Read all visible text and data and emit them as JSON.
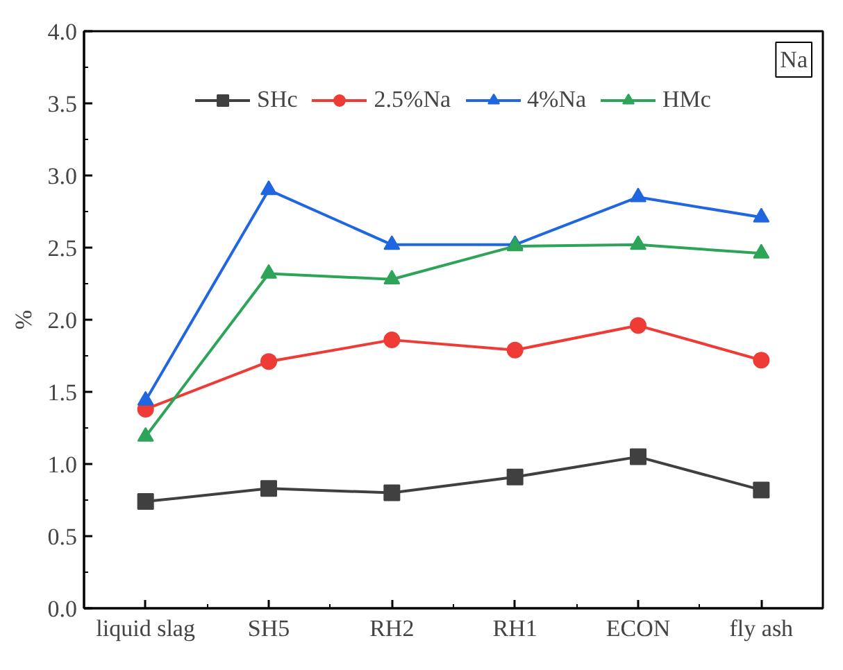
{
  "chart_data": {
    "type": "line",
    "ylabel": "%",
    "categories": [
      "liquid slag",
      "SH5",
      "RH2",
      "RH1",
      "ECON",
      "fly ash"
    ],
    "series": [
      {
        "name": "SHc",
        "color": "#404040",
        "marker": "square",
        "values": [
          0.74,
          0.83,
          0.8,
          0.91,
          1.05,
          0.82
        ]
      },
      {
        "name": "2.5%Na",
        "color": "#ef3b36",
        "marker": "circle",
        "values": [
          1.38,
          1.71,
          1.86,
          1.79,
          1.96,
          1.72
        ]
      },
      {
        "name": "4%Na",
        "color": "#1f66e0",
        "marker": "triangle",
        "values": [
          1.44,
          2.9,
          2.52,
          2.52,
          2.85,
          2.71
        ]
      },
      {
        "name": "HMc",
        "color": "#2ea458",
        "marker": "triangle",
        "values": [
          1.19,
          2.32,
          2.28,
          2.51,
          2.52,
          2.46
        ]
      }
    ],
    "ylim": [
      0,
      4.0
    ],
    "yticks": [
      {
        "value": 0,
        "label": "0.0"
      },
      0.5,
      {
        "value": 1,
        "label": "1.0"
      },
      1.5,
      {
        "value": 2,
        "label": "2.0"
      },
      2.5,
      {
        "value": 3,
        "label": "3.0"
      },
      3.5,
      {
        "value": 4,
        "label": "4.0"
      }
    ],
    "annotations": [
      "Na"
    ],
    "legend": "top",
    "grid": false
  }
}
